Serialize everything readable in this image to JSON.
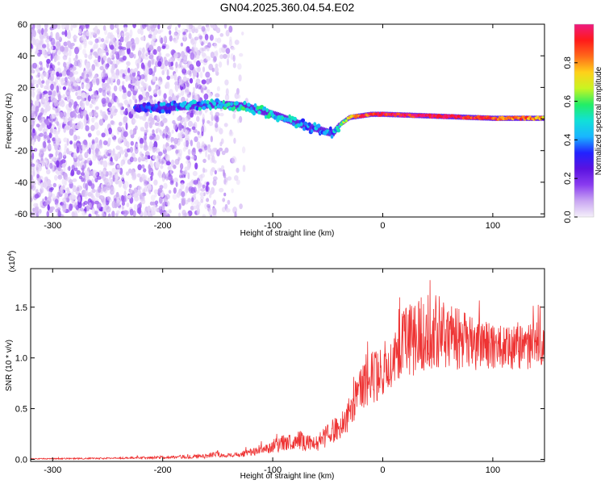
{
  "title": "GN04.2025.360.04.54.E02",
  "colors": {
    "snr_line": "#ee3333",
    "colorbar": [
      "#f5f0fa",
      "#c9a6f2",
      "#8a3cf0",
      "#5a12e0",
      "#2222ff",
      "#19b6ff",
      "#11e0d8",
      "#22ee66",
      "#c8f522",
      "#ffd11a",
      "#ff6a1a",
      "#ff1a1a",
      "#ee1a80"
    ]
  },
  "chart_data": [
    {
      "type": "heatmap",
      "title": "GN04.2025.360.04.54.E02",
      "xlabel": "Height of straight line (km)",
      "ylabel": "Frequency (Hz)",
      "xlim": [
        -320,
        147
      ],
      "ylim": [
        -62,
        60
      ],
      "x_ticks": [
        -300,
        -200,
        -100,
        0,
        100
      ],
      "x_tick_labels": [
        "-300",
        "-200",
        "-100",
        "0",
        "100"
      ],
      "y_ticks": [
        60,
        40,
        20,
        0,
        -20,
        -40,
        -60
      ],
      "y_tick_labels": [
        "60",
        "40",
        "20",
        "0",
        "-20",
        "-40",
        "-60"
      ],
      "colorbar": {
        "label": "Normalized spectral amplitude",
        "range": [
          0,
          1
        ],
        "ticks": [
          0,
          0.2,
          0.4,
          0.6,
          0.8
        ],
        "tick_labels": [
          "0.0",
          "0.2",
          "0.4",
          "0.6",
          "0.8"
        ]
      },
      "ridge": {
        "x": [
          -225,
          -200,
          -180,
          -160,
          -140,
          -125,
          -110,
          -95,
          -80,
          -68,
          -60,
          -52,
          -45,
          -38,
          -30,
          -20,
          -10,
          0,
          20,
          40,
          60,
          80,
          100,
          120,
          147
        ],
        "freq": [
          7,
          7,
          8,
          9,
          9,
          8,
          5,
          2,
          -2,
          -5,
          -6,
          -8,
          -9,
          -3,
          1,
          2,
          3,
          3,
          2.5,
          2,
          1.5,
          1,
          0.5,
          0.5,
          0.5
        ],
        "amplitude": [
          0.3,
          0.35,
          0.4,
          0.45,
          0.5,
          0.5,
          0.48,
          0.45,
          0.45,
          0.4,
          0.38,
          0.36,
          0.4,
          0.55,
          0.75,
          0.85,
          0.9,
          0.95,
          0.95,
          0.95,
          0.95,
          0.92,
          0.9,
          0.85,
          0.75
        ]
      },
      "noise_region_x": [
        -320,
        -150
      ]
    },
    {
      "type": "line",
      "xlabel": "Height of straight line (km)",
      "ylabel": "SNR (10 * v/v)",
      "y_scale_label": "(x10",
      "y_scale_exponent": "4",
      "xlim": [
        -320,
        147
      ],
      "ylim": [
        -0.02,
        1.88
      ],
      "x_ticks": [
        -300,
        -200,
        -100,
        0,
        100
      ],
      "x_tick_labels": [
        "-300",
        "-200",
        "-100",
        "0",
        "100"
      ],
      "y_ticks": [
        0,
        0.5,
        1.0,
        1.5
      ],
      "y_tick_labels": [
        "0.0",
        "0.5",
        "1.0",
        "1.5"
      ],
      "series": [
        {
          "name": "SNR",
          "x": [
            -320,
            -250,
            -200,
            -160,
            -150,
            -148,
            -140,
            -120,
            -105,
            -98,
            -90,
            -80,
            -75,
            -70,
            -62,
            -55,
            -45,
            -38,
            -32,
            -28,
            -25,
            -22,
            -18,
            -14,
            -10,
            -5,
            0,
            5,
            10,
            15,
            20,
            25,
            30,
            35,
            40,
            45,
            50,
            55,
            60,
            65,
            70,
            75,
            80,
            85,
            90,
            95,
            100,
            105,
            110,
            115,
            120,
            125,
            130,
            135,
            140,
            147
          ],
          "y": [
            0.005,
            0.01,
            0.02,
            0.03,
            0.06,
            0.04,
            0.04,
            0.07,
            0.1,
            0.14,
            0.16,
            0.18,
            0.2,
            0.16,
            0.15,
            0.2,
            0.28,
            0.34,
            0.42,
            0.52,
            0.58,
            0.66,
            0.72,
            0.78,
            0.8,
            0.84,
            0.9,
            0.96,
            1.02,
            1.08,
            1.14,
            1.18,
            1.2,
            1.22,
            1.24,
            1.25,
            1.26,
            1.24,
            1.22,
            1.2,
            1.18,
            1.17,
            1.15,
            1.14,
            1.13,
            1.12,
            1.12,
            1.11,
            1.1,
            1.1,
            1.1,
            1.1,
            1.1,
            1.12,
            1.14,
            1.16
          ],
          "spread": [
            0.005,
            0.008,
            0.015,
            0.02,
            0.03,
            0.02,
            0.02,
            0.04,
            0.05,
            0.07,
            0.08,
            0.08,
            0.1,
            0.09,
            0.08,
            0.1,
            0.12,
            0.14,
            0.16,
            0.18,
            0.2,
            0.22,
            0.24,
            0.26,
            0.27,
            0.28,
            0.28,
            0.28,
            0.3,
            0.32,
            0.35,
            0.36,
            0.37,
            0.38,
            0.38,
            0.38,
            0.36,
            0.35,
            0.33,
            0.31,
            0.3,
            0.28,
            0.27,
            0.26,
            0.25,
            0.24,
            0.23,
            0.23,
            0.22,
            0.22,
            0.22,
            0.22,
            0.22,
            0.22,
            0.22,
            0.22
          ]
        }
      ]
    }
  ]
}
